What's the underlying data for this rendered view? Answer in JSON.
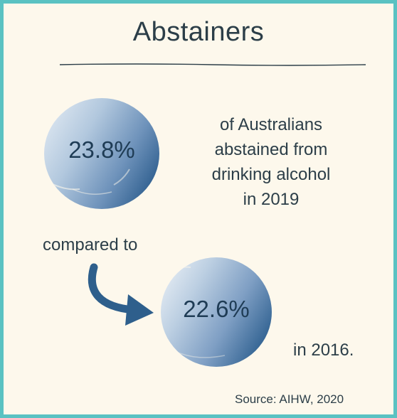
{
  "title": "Abstainers",
  "stat_2019": {
    "value": "23.8%",
    "description_lines": [
      "of Australians",
      "abstained from",
      "drinking alcohol",
      "in 2019"
    ]
  },
  "comparison_label": "compared to",
  "stat_2016": {
    "value": "22.6%",
    "year_label": "in 2016."
  },
  "source": "Source: AIHW, 2020",
  "colors": {
    "border": "#5ac2c2",
    "background": "#fdf8ec",
    "text": "#2c3e48",
    "stat_text": "#1f3c55",
    "arrow": "#2e5f8c"
  },
  "icons": {
    "arrow": "curved-down-right-arrow-icon"
  }
}
